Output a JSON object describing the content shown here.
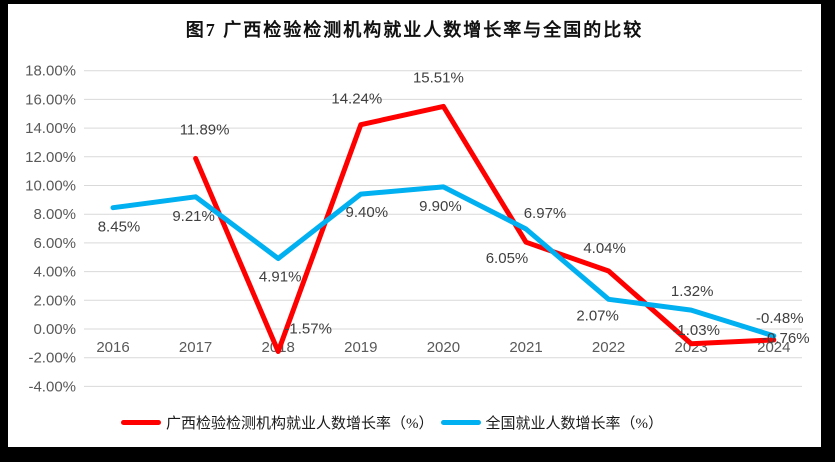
{
  "page": {
    "frame_color": "#000000",
    "canvas_color": "#ffffff"
  },
  "chart_data": {
    "type": "line",
    "title": "图7 广西检验检测机构就业人数增长率与全国的比较",
    "categories": [
      "2016",
      "2017",
      "2018",
      "2019",
      "2020",
      "2021",
      "2022",
      "2023",
      "2024"
    ],
    "series": [
      {
        "name": "广西检验检测机构就业人数增长率（%）",
        "color": "#FF0000",
        "values": [
          null,
          11.89,
          -1.57,
          14.24,
          15.51,
          6.05,
          4.04,
          -1.03,
          -0.76
        ],
        "data_labels": [
          null,
          "11.89%",
          "-1.57%",
          "14.24%",
          "15.51%",
          "6.05%",
          "4.04%",
          "-1.03%",
          "-0.76%"
        ]
      },
      {
        "name": "全国就业人数增长率（%）",
        "color": "#00B0F0",
        "values": [
          8.45,
          9.21,
          4.91,
          9.4,
          9.9,
          6.97,
          2.07,
          1.32,
          -0.48
        ],
        "data_labels": [
          "8.45%",
          "9.21%",
          "4.91%",
          "9.40%",
          "9.90%",
          "6.97%",
          "2.07%",
          "1.32%",
          "-0.48%"
        ]
      }
    ],
    "y_axis": {
      "min": -4,
      "max": 18,
      "step": 2,
      "tick_labels": [
        "18.00%",
        "16.00%",
        "14.00%",
        "12.00%",
        "10.00%",
        "8.00%",
        "6.00%",
        "4.00%",
        "2.00%",
        "0.00%",
        "-2.00%",
        "-4.00%"
      ]
    },
    "x_axis": {
      "tick_labels": [
        "2016",
        "2017",
        "2018",
        "2019",
        "2020",
        "2021",
        "2022",
        "2023",
        "2024"
      ]
    },
    "grid": true,
    "legend_position": "bottom",
    "colors": {
      "gridline": "#D9D9D9",
      "axis_text": "#595959",
      "data_label_text": "#404040"
    }
  }
}
